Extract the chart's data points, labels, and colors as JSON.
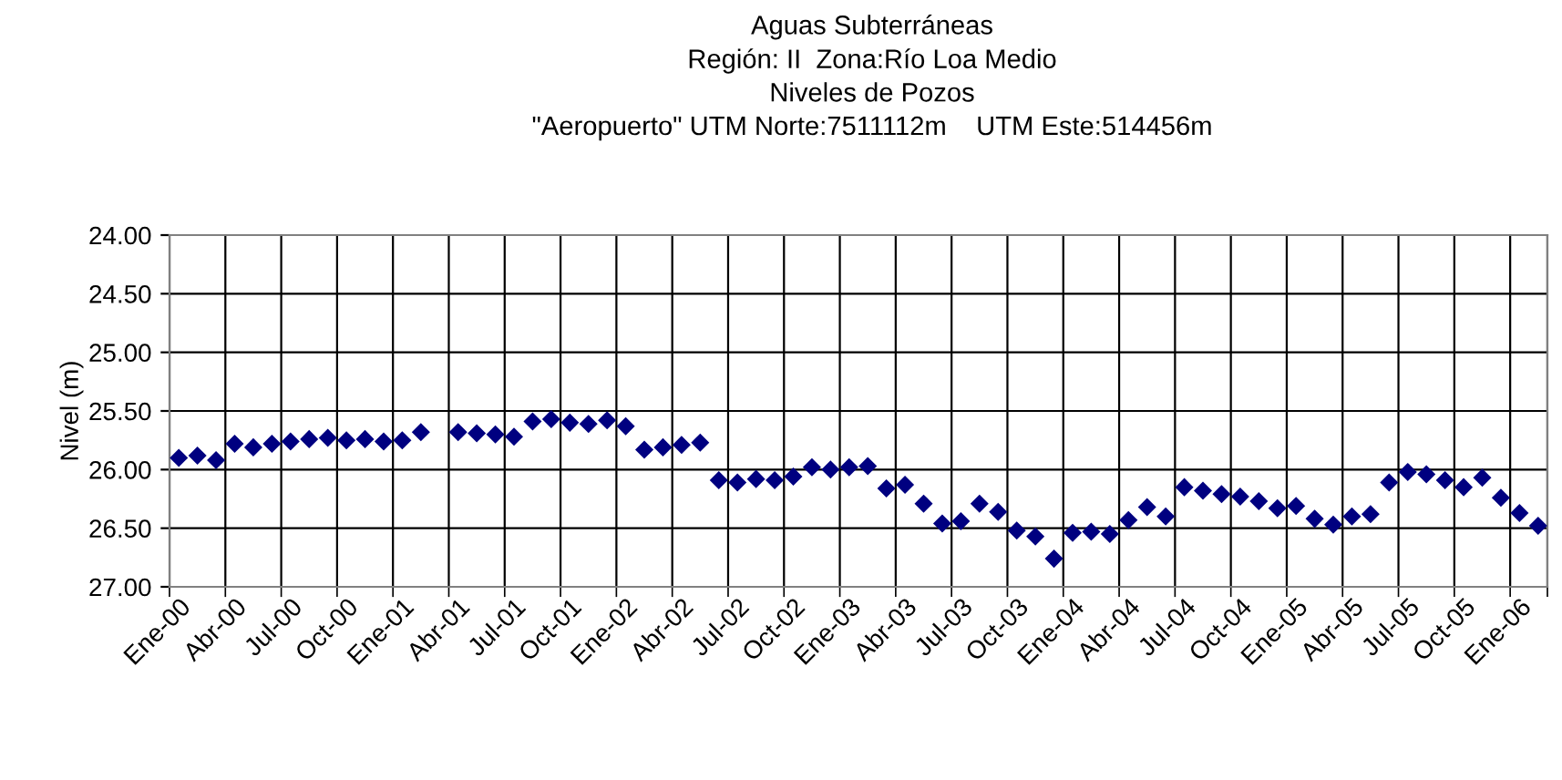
{
  "chart_data": {
    "type": "scatter",
    "title": "Aguas Subterráneas\nRegión: II  Zona:Río Loa Medio\nNiveles de Pozos\n\"Aeropuerto\" UTM Norte:7511112m    UTM Este:514456m",
    "ylabel": "Nivel (m)",
    "categories": [
      "Ene-00",
      null,
      null,
      "Abr-00",
      null,
      null,
      "Jul-00",
      null,
      null,
      "Oct-00",
      null,
      null,
      "Ene-01",
      null,
      null,
      "Abr-01",
      null,
      null,
      "Jul-01",
      null,
      null,
      "Oct-01",
      null,
      null,
      "Ene-02",
      null,
      null,
      "Abr-02",
      null,
      null,
      "Jul-02",
      null,
      null,
      "Oct-02",
      null,
      null,
      "Ene-03",
      null,
      null,
      "Abr-03",
      null,
      null,
      "Jul-03",
      null,
      null,
      "Oct-03",
      null,
      null,
      "Ene-04",
      null,
      null,
      "Abr-04",
      null,
      null,
      "Jul-04",
      null,
      null,
      "Oct-04",
      null,
      null,
      "Ene-05",
      null,
      null,
      "Abr-05",
      null,
      null,
      "Jul-05",
      null,
      null,
      "Oct-05",
      null,
      null,
      "Ene-06",
      null
    ],
    "series": [
      {
        "color": "#000080",
        "values": [
          25.9,
          25.88,
          25.92,
          25.78,
          25.81,
          25.78,
          25.76,
          25.74,
          25.73,
          25.75,
          25.74,
          25.76,
          25.75,
          25.68,
          null,
          25.68,
          25.69,
          25.7,
          25.72,
          25.59,
          25.57,
          25.6,
          25.61,
          25.58,
          25.63,
          25.83,
          25.81,
          25.79,
          25.77,
          26.09,
          26.11,
          26.08,
          26.09,
          26.06,
          25.98,
          26.0,
          25.98,
          25.97,
          26.16,
          26.13,
          26.29,
          26.46,
          26.44,
          26.29,
          26.36,
          26.52,
          26.57,
          26.76,
          26.54,
          26.53,
          26.55,
          26.43,
          26.32,
          26.4,
          26.15,
          26.18,
          26.21,
          26.23,
          26.27,
          26.33,
          26.31,
          26.42,
          26.47,
          26.4,
          26.38,
          26.11,
          26.02,
          26.04,
          26.09,
          26.15,
          26.07,
          26.24,
          26.37,
          26.48
        ]
      }
    ],
    "ylim": [
      27,
      24
    ],
    "yticks": [
      {
        "value": 24,
        "label": "24.00"
      },
      {
        "value": 24.5,
        "label": "24.50"
      },
      {
        "value": 25,
        "label": "25.00"
      },
      {
        "value": 25.5,
        "label": "25.50"
      },
      {
        "value": 26,
        "label": "26.00"
      },
      {
        "value": 26.5,
        "label": "26.50"
      },
      {
        "value": 27,
        "label": "27.00"
      }
    ],
    "grid": true,
    "marker": "diamond"
  }
}
